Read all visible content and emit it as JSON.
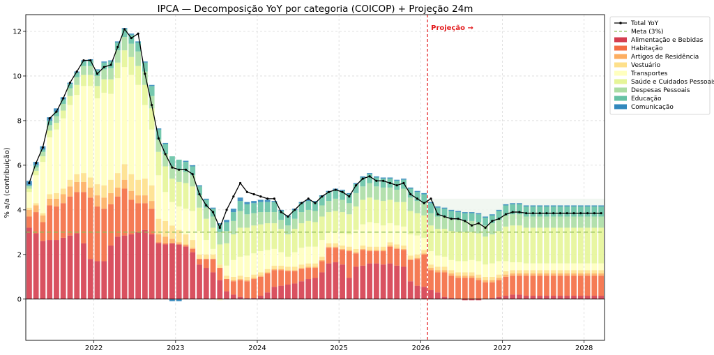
{
  "chart_data": {
    "type": "bar",
    "title": "IPCA — Decomposição YoY por categoria (COICOP) + Projeção 24m",
    "xlabel": "",
    "ylabel": "% a/a (contribuição)",
    "ylim": [
      -1.85,
      12.75
    ],
    "yticks": [
      0,
      2,
      4,
      6,
      8,
      10,
      12
    ],
    "xticks": [
      {
        "label": "2022",
        "index": 10
      },
      {
        "label": "2023",
        "index": 22
      },
      {
        "label": "2024",
        "index": 34
      },
      {
        "label": "2025",
        "index": 46
      },
      {
        "label": "2026",
        "index": 58
      },
      {
        "label": "2027",
        "index": 70
      },
      {
        "label": "2028",
        "index": 82
      }
    ],
    "n_periods": 85,
    "first_period": "2021-03",
    "projection_start_index": 59,
    "projection_label": "Projeção →",
    "meta_value": 3.0,
    "grid": true,
    "legend_position": "outside-top-right",
    "series": [
      {
        "name": "Alimentação e Bebidas",
        "color": "#d53e4f"
      },
      {
        "name": "Habitação",
        "color": "#f46d43"
      },
      {
        "name": "Artigos de Residência",
        "color": "#fdae61"
      },
      {
        "name": "Vestuário",
        "color": "#fee08b"
      },
      {
        "name": "Transportes",
        "color": "#ffffbf"
      },
      {
        "name": "Saúde e Cuidados Pessoais",
        "color": "#e6f598"
      },
      {
        "name": "Despesas Pessoais",
        "color": "#abdda4"
      },
      {
        "name": "Educação",
        "color": "#66c2a5"
      },
      {
        "name": "Comunicação",
        "color": "#3288bd"
      }
    ],
    "legend": [
      {
        "label": "Total YoY",
        "kind": "line-marker",
        "color": "#000000"
      },
      {
        "label": "Meta (3%)",
        "kind": "dashed",
        "color": "#8fbc5a"
      },
      {
        "label": "Alimentação e Bebidas",
        "kind": "patch",
        "color": "#d53e4f"
      },
      {
        "label": "Habitação",
        "kind": "patch",
        "color": "#f46d43"
      },
      {
        "label": "Artigos de Residência",
        "kind": "patch",
        "color": "#fdae61"
      },
      {
        "label": "Vestuário",
        "kind": "patch",
        "color": "#fee08b"
      },
      {
        "label": "Transportes",
        "kind": "patch",
        "color": "#ffffbf"
      },
      {
        "label": "Saúde e Cuidados Pessoais",
        "kind": "patch",
        "color": "#e6f598"
      },
      {
        "label": "Despesas Pessoais",
        "kind": "patch",
        "color": "#abdda4"
      },
      {
        "label": "Educação",
        "kind": "patch",
        "color": "#66c2a5"
      },
      {
        "label": "Comunicação",
        "kind": "patch",
        "color": "#3288bd"
      }
    ],
    "total": [
      5.2,
      6.1,
      6.8,
      8.1,
      8.4,
      9.0,
      9.7,
      10.2,
      10.7,
      10.7,
      10.1,
      10.4,
      10.5,
      11.3,
      12.1,
      11.7,
      11.9,
      10.1,
      8.7,
      7.2,
      6.5,
      5.9,
      5.8,
      5.8,
      5.6,
      4.7,
      4.2,
      3.9,
      3.2,
      4.0,
      4.6,
      5.2,
      4.8,
      4.7,
      4.6,
      4.5,
      4.5,
      3.9,
      3.7,
      4.0,
      4.3,
      4.5,
      4.3,
      4.6,
      4.8,
      4.9,
      4.8,
      4.6,
      5.1,
      5.4,
      5.5,
      5.3,
      5.3,
      5.2,
      5.1,
      5.2,
      4.7,
      4.5,
      4.3,
      4.5,
      3.8,
      3.7,
      3.6,
      3.6,
      3.5,
      3.3,
      3.4,
      3.2,
      3.5,
      3.6,
      3.8,
      3.9,
      3.9,
      3.85,
      3.85,
      3.85,
      3.85,
      3.85,
      3.85,
      3.85,
      3.85,
      3.85,
      3.85,
      3.85,
      3.85
    ],
    "stacks": {
      "Alimentação e Bebidas": [
        3.2,
        2.95,
        2.6,
        2.65,
        2.65,
        2.75,
        2.85,
        2.95,
        2.5,
        1.8,
        1.7,
        1.7,
        2.4,
        2.8,
        2.85,
        2.9,
        3.0,
        3.1,
        2.9,
        2.5,
        2.45,
        2.5,
        2.45,
        2.35,
        2.1,
        1.55,
        1.4,
        1.2,
        0.85,
        0.35,
        0.2,
        0.1,
        0.05,
        0.05,
        0.15,
        0.3,
        0.55,
        0.6,
        0.65,
        0.7,
        0.8,
        0.9,
        0.95,
        1.2,
        1.6,
        1.65,
        1.55,
        0.95,
        1.45,
        1.5,
        1.6,
        1.6,
        1.55,
        1.6,
        1.5,
        1.45,
        0.8,
        0.6,
        0.55,
        0.4,
        0.3,
        0.1,
        0.05,
        0.0,
        -0.05,
        -0.05,
        -0.05,
        0.0,
        0.05,
        0.1,
        0.15,
        0.2,
        0.2,
        0.15,
        0.15,
        0.15,
        0.15,
        0.15,
        0.15,
        0.15,
        0.15,
        0.15,
        0.15,
        0.15,
        0.15
      ],
      "Habitação": [
        0.5,
        0.95,
        0.85,
        1.55,
        1.5,
        1.55,
        1.75,
        1.85,
        2.3,
        2.75,
        2.45,
        2.35,
        1.85,
        1.8,
        2.1,
        1.55,
        1.3,
        1.2,
        1.15,
        0.05,
        0.05,
        0.0,
        0.0,
        0.05,
        0.15,
        0.25,
        0.4,
        0.6,
        0.55,
        0.55,
        0.6,
        0.75,
        0.75,
        0.85,
        0.85,
        0.85,
        0.75,
        0.7,
        0.6,
        0.55,
        0.55,
        0.5,
        0.45,
        0.5,
        0.7,
        0.65,
        0.65,
        1.2,
        0.6,
        0.7,
        0.55,
        0.55,
        0.6,
        0.75,
        0.75,
        0.75,
        0.95,
        1.2,
        1.45,
        0.9,
        0.9,
        1.1,
        1.0,
        0.95,
        0.95,
        0.95,
        0.85,
        0.75,
        0.7,
        0.75,
        0.85,
        0.85,
        0.85,
        0.9,
        0.9,
        0.9,
        0.9,
        0.9,
        0.9,
        0.9,
        0.9,
        0.9,
        0.9,
        0.9,
        0.9
      ],
      "Artigos de Residência": [
        0.3,
        0.3,
        0.3,
        0.3,
        0.35,
        0.4,
        0.45,
        0.45,
        0.45,
        0.45,
        0.5,
        0.5,
        0.5,
        0.4,
        0.4,
        0.4,
        0.35,
        0.35,
        0.35,
        0.35,
        0.3,
        0.2,
        0.1,
        0.05,
        0.05,
        0.0,
        0.0,
        0.0,
        0.0,
        0.0,
        0.05,
        0.05,
        0.05,
        0.05,
        0.05,
        0.05,
        0.05,
        0.05,
        0.05,
        0.05,
        0.05,
        0.05,
        0.05,
        0.05,
        0.05,
        0.05,
        0.05,
        0.05,
        0.05,
        0.05,
        0.05,
        0.05,
        0.05,
        0.05,
        0.05,
        0.05,
        0.05,
        0.05,
        0.05,
        0.1,
        0.1,
        0.1,
        0.1,
        0.1,
        0.1,
        0.1,
        0.1,
        0.1,
        0.1,
        0.1,
        0.1,
        0.1,
        0.1,
        0.1,
        0.1,
        0.1,
        0.1,
        0.1,
        0.1,
        0.1,
        0.1,
        0.1,
        0.1,
        0.1,
        0.1
      ],
      "Vestuário": [
        0.1,
        0.1,
        0.1,
        0.2,
        0.25,
        0.25,
        0.3,
        0.35,
        0.4,
        0.45,
        0.5,
        0.55,
        0.6,
        0.65,
        0.7,
        0.75,
        0.7,
        0.75,
        0.7,
        0.7,
        0.7,
        0.6,
        0.55,
        0.45,
        0.35,
        0.2,
        0.2,
        0.2,
        0.15,
        0.15,
        0.15,
        0.15,
        0.15,
        0.15,
        0.15,
        0.15,
        0.15,
        0.15,
        0.15,
        0.15,
        0.15,
        0.15,
        0.15,
        0.15,
        0.15,
        0.15,
        0.15,
        0.15,
        0.15,
        0.15,
        0.15,
        0.15,
        0.15,
        0.15,
        0.15,
        0.15,
        0.15,
        0.15,
        0.15,
        0.15,
        0.15,
        0.15,
        0.15,
        0.15,
        0.15,
        0.15,
        0.15,
        0.15,
        0.15,
        0.15,
        0.15,
        0.15,
        0.15,
        0.15,
        0.15,
        0.15,
        0.15,
        0.15,
        0.15,
        0.15,
        0.15,
        0.15,
        0.15,
        0.15,
        0.15
      ],
      "Transportes": [
        0.7,
        1.25,
        2.3,
        2.55,
        2.85,
        3.15,
        3.35,
        3.55,
        3.9,
        4.1,
        3.85,
        4.15,
        3.85,
        4.25,
        4.35,
        4.45,
        4.25,
        3.3,
        2.5,
        1.95,
        1.3,
        1.05,
        1.05,
        1.15,
        1.3,
        1.05,
        0.65,
        0.25,
        -0.05,
        0.45,
        0.75,
        0.85,
        0.95,
        0.95,
        0.95,
        0.85,
        0.75,
        0.6,
        0.45,
        0.65,
        0.75,
        0.75,
        0.75,
        0.75,
        0.5,
        0.5,
        0.55,
        0.55,
        0.85,
        0.95,
        1.1,
        1.05,
        0.95,
        0.85,
        0.85,
        0.85,
        0.95,
        0.85,
        0.55,
        0.6,
        0.5,
        0.45,
        0.45,
        0.5,
        0.5,
        0.55,
        0.6,
        0.55,
        0.6,
        0.6,
        0.45,
        0.35,
        0.35,
        0.3,
        0.3,
        0.3,
        0.3,
        0.3,
        0.3,
        0.3,
        0.3,
        0.3,
        0.3,
        0.3,
        0.3
      ],
      "Saúde e Cuidados Pessoais": [
        0.15,
        0.2,
        0.25,
        0.3,
        0.3,
        0.35,
        0.4,
        0.45,
        0.5,
        0.5,
        0.55,
        0.6,
        0.65,
        0.7,
        0.75,
        0.8,
        0.85,
        0.9,
        0.95,
        1.05,
        1.15,
        1.05,
        1.1,
        1.15,
        1.1,
        1.05,
        0.95,
        0.95,
        0.9,
        1.0,
        1.15,
        1.3,
        1.25,
        1.25,
        1.2,
        1.2,
        1.15,
        1.05,
        1.0,
        1.05,
        1.1,
        1.15,
        1.1,
        1.05,
        0.9,
        0.95,
        0.95,
        0.9,
        1.05,
        1.1,
        1.1,
        1.05,
        1.1,
        1.05,
        1.05,
        1.1,
        1.05,
        1.0,
        1.0,
        1.15,
        1.2,
        1.25,
        1.3,
        1.3,
        1.3,
        1.25,
        1.25,
        1.25,
        1.3,
        1.35,
        1.55,
        1.65,
        1.65,
        1.6,
        1.6,
        1.6,
        1.6,
        1.6,
        1.6,
        1.6,
        1.6,
        1.6,
        1.6,
        1.6,
        1.6
      ],
      "Despesas Pessoais": [
        0.1,
        0.15,
        0.2,
        0.25,
        0.3,
        0.3,
        0.35,
        0.35,
        0.4,
        0.4,
        0.45,
        0.45,
        0.5,
        0.55,
        0.6,
        0.6,
        0.65,
        0.6,
        0.55,
        0.55,
        0.55,
        0.55,
        0.55,
        0.5,
        0.5,
        0.55,
        0.5,
        0.5,
        0.55,
        0.55,
        0.6,
        0.75,
        0.6,
        0.55,
        0.55,
        0.5,
        0.5,
        0.4,
        0.4,
        0.45,
        0.5,
        0.5,
        0.5,
        0.5,
        0.5,
        0.55,
        0.55,
        0.5,
        0.6,
        0.6,
        0.65,
        0.6,
        0.6,
        0.55,
        0.55,
        0.6,
        0.6,
        0.55,
        0.55,
        0.55,
        0.55,
        0.55,
        0.55,
        0.55,
        0.5,
        0.5,
        0.5,
        0.5,
        0.5,
        0.5,
        0.5,
        0.5,
        0.5,
        0.5,
        0.5,
        0.5,
        0.5,
        0.5,
        0.5,
        0.5,
        0.5,
        0.5,
        0.5,
        0.5,
        0.5
      ],
      "Educação": [
        0.05,
        0.1,
        0.1,
        0.2,
        0.2,
        0.2,
        0.2,
        0.2,
        0.2,
        0.25,
        0.25,
        0.3,
        0.3,
        0.35,
        0.35,
        0.4,
        0.4,
        0.4,
        0.45,
        0.45,
        0.45,
        0.45,
        0.45,
        0.45,
        0.4,
        0.4,
        0.35,
        0.35,
        0.35,
        0.4,
        0.4,
        0.45,
        0.45,
        0.45,
        0.45,
        0.45,
        0.45,
        0.4,
        0.4,
        0.4,
        0.4,
        0.4,
        0.4,
        0.4,
        0.4,
        0.4,
        0.4,
        0.4,
        0.4,
        0.4,
        0.4,
        0.4,
        0.4,
        0.4,
        0.4,
        0.4,
        0.4,
        0.4,
        0.4,
        0.45,
        0.4,
        0.35,
        0.35,
        0.35,
        0.35,
        0.35,
        0.35,
        0.35,
        0.35,
        0.4,
        0.45,
        0.45,
        0.45,
        0.45,
        0.45,
        0.45,
        0.45,
        0.45,
        0.45,
        0.45,
        0.45,
        0.45,
        0.45,
        0.45,
        0.45
      ],
      "Comunicação": [
        0.2,
        0.15,
        0.15,
        0.15,
        0.15,
        0.1,
        0.05,
        0.05,
        0.05,
        0.05,
        0.05,
        0.05,
        0.05,
        0.05,
        0.05,
        0.05,
        0.05,
        0.05,
        0.05,
        0.05,
        0.05,
        -0.1,
        -0.1,
        0.05,
        0.05,
        0.05,
        0.05,
        0.05,
        0.05,
        0.1,
        0.15,
        0.15,
        0.1,
        0.1,
        0.1,
        0.1,
        0.05,
        0.05,
        0.05,
        0.05,
        0.05,
        0.05,
        0.05,
        0.05,
        0.05,
        0.05,
        0.05,
        0.05,
        0.05,
        0.05,
        0.05,
        0.05,
        0.05,
        0.05,
        0.05,
        0.05,
        0.05,
        0.05,
        0.05,
        0.05,
        0.05,
        0.05,
        0.05,
        0.05,
        0.05,
        0.05,
        0.05,
        0.05,
        0.05,
        0.05,
        0.05,
        0.05,
        0.05,
        0.05,
        0.05,
        0.05,
        0.05,
        0.05,
        0.05,
        0.05,
        0.05,
        0.05,
        0.05,
        0.05,
        0.05
      ]
    }
  }
}
